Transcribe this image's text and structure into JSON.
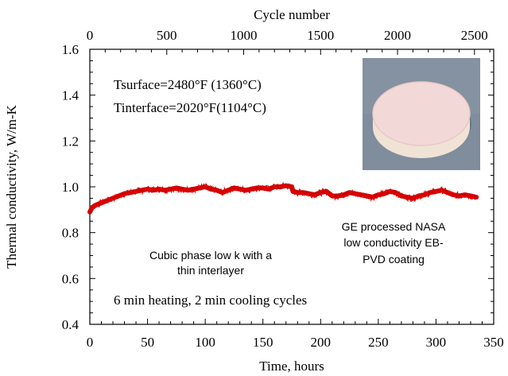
{
  "chart_data": {
    "type": "line",
    "xlabel": "Time, hours",
    "ylabel": "Thermal conductivity, W/m-K",
    "x2label": "Cycle number",
    "xlim": [
      0,
      350
    ],
    "ylim": [
      0.4,
      1.6
    ],
    "x2lim": [
      0,
      2625
    ],
    "xticks": [
      "0",
      "50",
      "100",
      "150",
      "200",
      "250",
      "300",
      "350"
    ],
    "yticks": [
      "0.4",
      "0.6",
      "0.8",
      "1.0",
      "1.2",
      "1.4",
      "1.6"
    ],
    "x2ticks": [
      "0",
      "500",
      "1000",
      "1500",
      "2000",
      "2500"
    ],
    "grid": false,
    "line_color": "#cc0000",
    "series": [
      {
        "x": [
          0,
          2,
          5,
          10,
          15,
          20,
          25,
          30,
          35,
          40,
          45,
          50,
          55,
          60,
          65,
          70,
          75,
          80,
          85,
          90,
          95,
          100,
          105,
          110,
          115,
          120,
          125,
          130,
          135,
          140,
          145,
          150,
          155,
          160,
          165,
          170,
          175,
          176,
          180,
          185,
          190,
          195,
          200,
          205,
          210,
          215,
          220,
          225,
          230,
          235,
          240,
          245,
          250,
          255,
          260,
          265,
          270,
          275,
          280,
          285,
          290,
          295,
          300,
          305,
          310,
          315,
          320,
          325,
          330,
          335
        ],
        "y": [
          0.89,
          0.91,
          0.92,
          0.93,
          0.94,
          0.95,
          0.96,
          0.97,
          0.975,
          0.98,
          0.985,
          0.99,
          0.985,
          0.99,
          0.985,
          0.99,
          0.995,
          0.99,
          0.985,
          0.99,
          0.995,
          1.0,
          0.99,
          0.985,
          0.975,
          0.985,
          0.995,
          0.99,
          0.985,
          0.99,
          0.995,
          0.995,
          0.99,
          1.0,
          1.0,
          1.005,
          1.0,
          0.98,
          0.975,
          0.975,
          0.97,
          0.965,
          0.975,
          0.98,
          0.96,
          0.96,
          0.965,
          0.975,
          0.97,
          0.965,
          0.96,
          0.955,
          0.965,
          0.97,
          0.98,
          0.975,
          0.96,
          0.955,
          0.95,
          0.96,
          0.965,
          0.975,
          0.98,
          0.985,
          0.975,
          0.965,
          0.96,
          0.965,
          0.96,
          0.955
        ]
      }
    ],
    "annotations": {
      "temp_surface": "Tsurface=2480°F (1360°C)",
      "temp_interface": "Tinterface=2020°F(1104°C)",
      "cubic_line1": "Cubic phase low k with a",
      "cubic_line2": "thin interlayer",
      "ge_line1": "GE processed NASA",
      "ge_line2": "low conductivity EB-",
      "ge_line3": "PVD coating",
      "cycles": "6 min heating, 2 min cooling cycles"
    }
  },
  "inset_photo": {
    "background": "#7f8d9c",
    "disc_color": "#f2d9d7",
    "rim_color": "#f0e2d4"
  }
}
